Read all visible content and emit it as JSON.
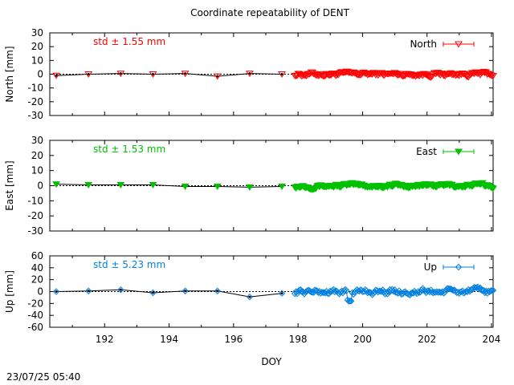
{
  "title": "Coordinate repeatability of DENT",
  "timestamp": "23/07/25 05:40",
  "chart_data": [
    {
      "type": "line",
      "component": "North",
      "ylabel": "North [mm]",
      "xlabel": "",
      "legend": "North",
      "legend_position": "top-right",
      "std_label": "std ± 1.55 mm",
      "color": "#ff0000",
      "marker": "triangle-down-open",
      "xlim": [
        190.3,
        204.05
      ],
      "ylim": [
        -30,
        30
      ],
      "yticks": [
        "30",
        "20",
        "10",
        "0",
        "-10",
        "-20",
        "-30"
      ],
      "xticks": [],
      "zero_line": true,
      "daily_series": {
        "x": [
          190.5,
          191.5,
          192.5,
          193.5,
          194.5,
          195.5,
          196.5,
          197.5
        ],
        "y": [
          -1,
          0,
          0.5,
          0,
          0.5,
          -1.5,
          0.5,
          0
        ]
      },
      "hf_amplitude": 1.6,
      "hf_xrange": [
        197.9,
        204.05
      ]
    },
    {
      "type": "line",
      "component": "East",
      "ylabel": "East [mm]",
      "xlabel": "",
      "legend": "East",
      "legend_position": "top-right",
      "std_label": "std ± 1.53 mm",
      "color": "#00c000",
      "marker": "triangle-down-filled",
      "xlim": [
        190.3,
        204.05
      ],
      "ylim": [
        -30,
        30
      ],
      "yticks": [
        "30",
        "20",
        "10",
        "0",
        "-10",
        "-20",
        "-30"
      ],
      "xticks": [],
      "zero_line": true,
      "daily_series": {
        "x": [
          190.5,
          191.5,
          192.5,
          193.5,
          194.5,
          195.5,
          196.5,
          197.5
        ],
        "y": [
          1,
          0.5,
          0.5,
          0.5,
          -0.5,
          -0.5,
          -1,
          -0.5
        ]
      },
      "hf_amplitude": 1.5,
      "hf_xrange": [
        197.9,
        204.05
      ]
    },
    {
      "type": "line",
      "component": "Up",
      "ylabel": "Up [mm]",
      "xlabel": "DOY",
      "legend": "Up",
      "legend_position": "top-right",
      "std_label": "std ± 5.23 mm",
      "color": "#0080e0",
      "marker": "diamond-open",
      "xlim": [
        190.3,
        204.05
      ],
      "ylim": [
        -60,
        60
      ],
      "yticks": [
        "60",
        "40",
        "20",
        "0",
        "-20",
        "-40",
        "-60"
      ],
      "xticks": [
        "192",
        "194",
        "196",
        "198",
        "200",
        "202",
        "204"
      ],
      "zero_line": true,
      "daily_series": {
        "x": [
          190.5,
          191.5,
          192.5,
          193.5,
          194.5,
          195.5,
          196.5,
          197.5
        ],
        "y": [
          0,
          1,
          3,
          -2,
          1,
          1,
          -9,
          -3
        ]
      },
      "hf_amplitude": 5.2,
      "hf_xrange": [
        197.9,
        204.05
      ]
    }
  ]
}
